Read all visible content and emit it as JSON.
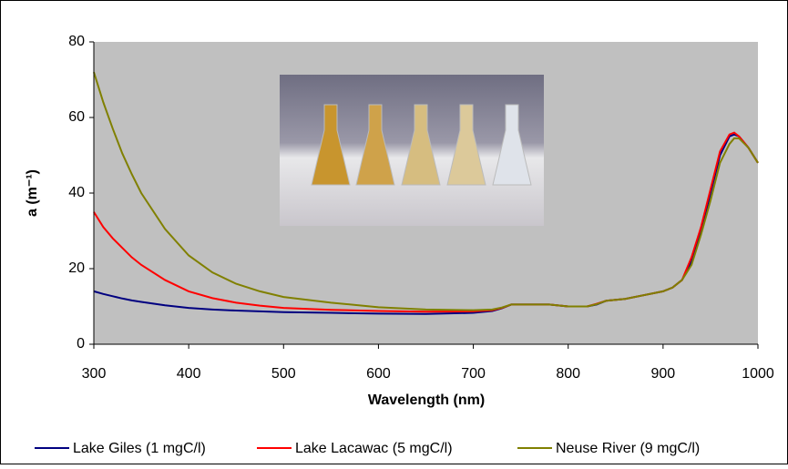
{
  "chart_data": {
    "type": "line",
    "x_label": "Wavelength (nm)",
    "y_label": "a (m⁻¹)",
    "xlim": [
      300,
      1000
    ],
    "xticks": [
      300,
      400,
      500,
      600,
      700,
      800,
      900,
      1000
    ],
    "ylim": [
      0,
      80
    ],
    "yticks": [
      0,
      20,
      40,
      60,
      80
    ],
    "legend": "bottom",
    "x": [
      300,
      310,
      320,
      330,
      340,
      350,
      375,
      400,
      425,
      450,
      475,
      500,
      550,
      600,
      650,
      700,
      720,
      730,
      740,
      760,
      780,
      800,
      820,
      830,
      840,
      860,
      880,
      900,
      910,
      920,
      930,
      940,
      950,
      960,
      970,
      975,
      980,
      990,
      1000
    ],
    "series": [
      {
        "name": "Lake Giles (1 mgC/l)",
        "color": "#000080",
        "values": [
          14,
          13.3,
          12.7,
          12.1,
          11.6,
          11.2,
          10.3,
          9.6,
          9.2,
          8.9,
          8.7,
          8.5,
          8.3,
          8.1,
          8.0,
          8.3,
          8.8,
          9.5,
          10.5,
          10.5,
          10.5,
          10,
          10,
          10.5,
          11.5,
          12,
          13,
          14,
          15,
          17,
          22,
          30,
          40,
          50,
          55,
          55.5,
          55,
          52,
          48
        ]
      },
      {
        "name": "Lake Lacawac (5 mgC/l)",
        "color": "#ff0000",
        "values": [
          35,
          31,
          28,
          25.5,
          23,
          21,
          17,
          14,
          12.2,
          11,
          10.2,
          9.6,
          9.1,
          8.8,
          8.6,
          8.7,
          9,
          9.6,
          10.5,
          10.5,
          10.5,
          10,
          10,
          10.7,
          11.5,
          12,
          13,
          14,
          15,
          17,
          23,
          31,
          41,
          51,
          55.5,
          56,
          55,
          52,
          48
        ]
      },
      {
        "name": "Neuse River (9 mgC/l)",
        "color": "#808000",
        "values": [
          72,
          64,
          57,
          50.5,
          45,
          40,
          30.5,
          23.5,
          19,
          16,
          14,
          12.5,
          11,
          9.8,
          9.2,
          9,
          9.2,
          9.7,
          10.5,
          10.5,
          10.5,
          10,
          10,
          10.6,
          11.5,
          12,
          13,
          14,
          15,
          17,
          21,
          29,
          38,
          48,
          53,
          54.5,
          54.5,
          52,
          48
        ]
      }
    ]
  }
}
